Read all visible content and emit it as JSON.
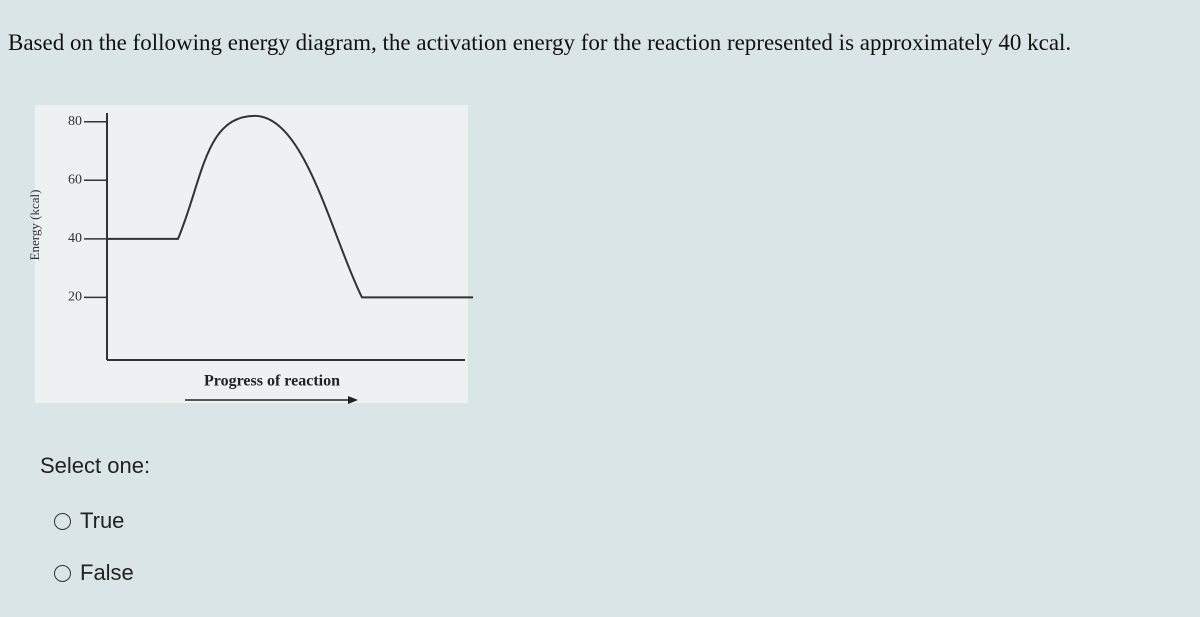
{
  "question": "Based on the following energy diagram, the activation energy for the reaction represented is approximately 40 kcal.",
  "chart_data": {
    "type": "line",
    "y_label": "Energy (kcal)",
    "x_label": "Progress of reaction",
    "values": [
      40,
      40,
      82,
      20,
      20
    ],
    "ylim": [
      0,
      84
    ],
    "yticks": [
      20,
      40,
      60,
      80
    ],
    "color": "#333333"
  },
  "prompt": "Select one:",
  "options": [
    "True",
    "False"
  ]
}
